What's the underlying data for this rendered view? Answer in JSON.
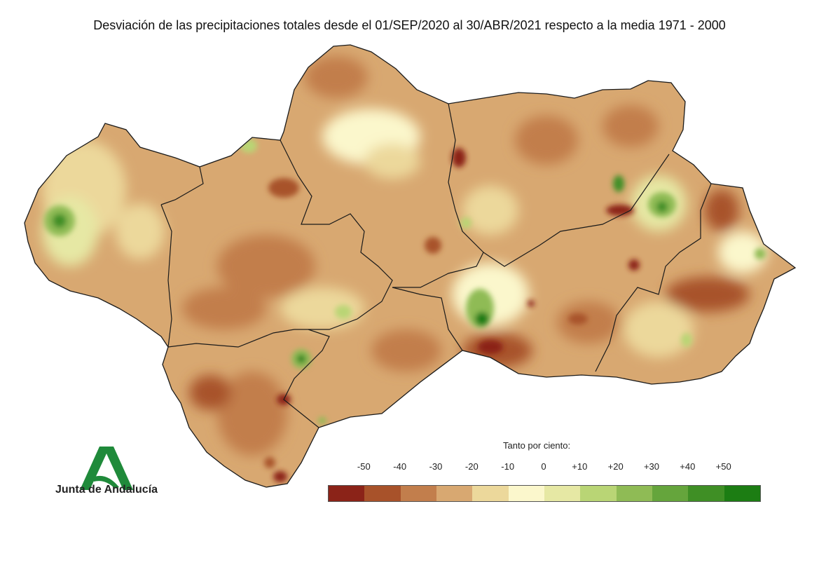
{
  "title": "Desviación de las precipitaciones totales desde el 01/SEP/2020 al 30/ABR/2021 respecto a la media 1971 - 2000",
  "logo": {
    "text": "Junta de Andalucía",
    "color": "#1f8a3a"
  },
  "legend": {
    "title": "Tanto por ciento:",
    "ticks": [
      "-50",
      "-40",
      "-30",
      "-20",
      "-10",
      "0",
      "+10",
      "+20",
      "+30",
      "+40",
      "+50"
    ],
    "colors": [
      "#8b2318",
      "#a8522a",
      "#c27e4c",
      "#d8a871",
      "#ecd89b",
      "#fbf7cc",
      "#e6e8a4",
      "#b9d575",
      "#8fbb55",
      "#65a53c",
      "#3f8f25",
      "#1c7d13"
    ]
  },
  "map": {
    "base_color": "#d8a871",
    "border_color": "#1a1a1a",
    "sea_color": "#ffffff"
  }
}
